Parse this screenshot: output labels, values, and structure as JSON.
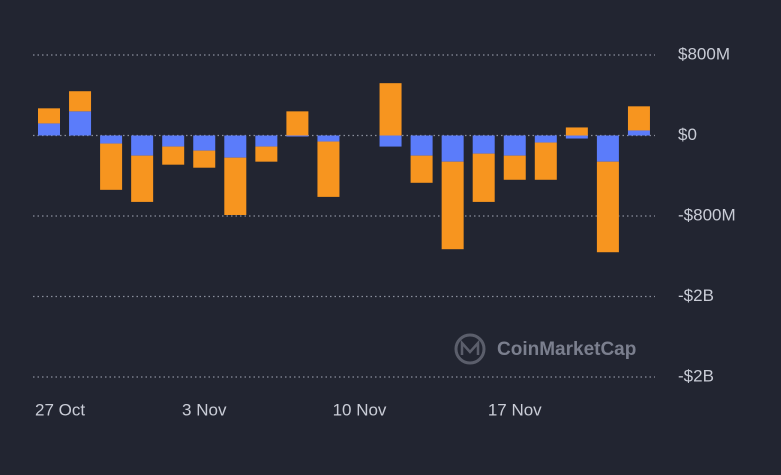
{
  "chart_data": {
    "type": "bar",
    "stacked": true,
    "watermark": "CoinMarketCap",
    "categories": [
      "27 Oct",
      null,
      null,
      null,
      null,
      "3 Nov",
      null,
      null,
      null,
      null,
      "10 Nov",
      null,
      null,
      null,
      null,
      "17 Nov",
      null,
      null,
      null,
      null
    ],
    "series": [
      {
        "color": "#5b7cfa",
        "values": [
          120,
          240,
          -80,
          -200,
          -110,
          -150,
          -220,
          -110,
          -10,
          -60,
          null,
          -110,
          -200,
          -260,
          -180,
          -200,
          -70,
          -30,
          -260,
          50
        ]
      },
      {
        "color": "#f7951f",
        "values": [
          150,
          200,
          -460,
          -460,
          -180,
          -170,
          -570,
          -150,
          240,
          -550,
          null,
          520,
          -270,
          -870,
          -480,
          -240,
          -370,
          80,
          -900,
          240
        ]
      }
    ],
    "ylim": [
      -2400,
      800
    ],
    "yticks": [
      {
        "value": 800,
        "label": "$800M"
      },
      {
        "value": 0,
        "label": "$0"
      },
      {
        "value": -800,
        "label": "-$800M"
      },
      {
        "value": -1600,
        "label": "-$2B"
      },
      {
        "value": -2400,
        "label": "-$2B"
      }
    ],
    "grid": true
  }
}
